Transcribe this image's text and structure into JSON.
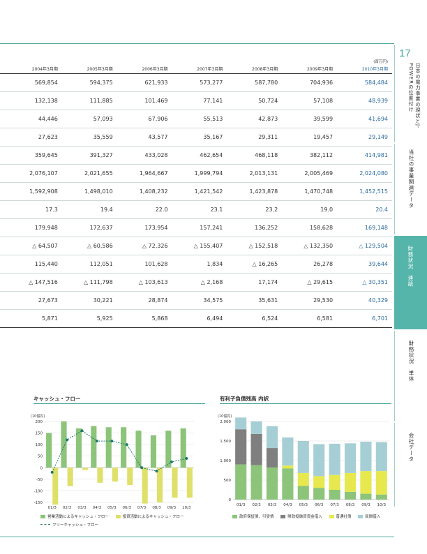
{
  "page": {
    "number": "17",
    "unit": "(百万円)"
  },
  "table": {
    "headers": [
      "2004年3月期",
      "2005年3月期",
      "2006年3月期",
      "2007年3月期",
      "2008年3月期",
      "2009年3月期",
      "2010年3月期"
    ],
    "rows": [
      [
        "569,854",
        "594,375",
        "621,933",
        "573,277",
        "587,780",
        "704,936",
        "584,484"
      ],
      [
        "132,138",
        "111,885",
        "101,469",
        "77,141",
        "50,724",
        "57,108",
        "48,939"
      ],
      [
        "44,446",
        "57,093",
        "67,906",
        "55,513",
        "42,873",
        "39,599",
        "41,694"
      ],
      [
        "27,623",
        "35,559",
        "43,577",
        "35,167",
        "29,311",
        "19,457",
        "29,149"
      ],
      [
        "359,645",
        "391,327",
        "433,028",
        "462,654",
        "468,118",
        "382,112",
        "414,981"
      ],
      [
        "2,076,107",
        "2,021,655",
        "1,964,667",
        "1,999,794",
        "2,013,131",
        "2,005,469",
        "2,024,080"
      ],
      [
        "1,592,908",
        "1,498,010",
        "1,408,232",
        "1,421,542",
        "1,423,878",
        "1,470,748",
        "1,452,515"
      ],
      [
        "17.3",
        "19.4",
        "22.0",
        "23.1",
        "23.2",
        "19.0",
        "20.4"
      ],
      [
        "179,948",
        "172,637",
        "173,954",
        "157,241",
        "136,252",
        "158,628",
        "169,148"
      ],
      [
        "△ 64,507",
        "△ 60,586",
        "△ 72,326",
        "△ 155,407",
        "△ 152,518",
        "△ 132,350",
        "△ 129,504"
      ],
      [
        "115,440",
        "112,051",
        "101,628",
        "1,834",
        "△ 16,265",
        "26,278",
        "39,644"
      ],
      [
        "△ 147,516",
        "△ 111,798",
        "△ 103,613",
        "△ 2,168",
        "17,174",
        "△ 29,615",
        "△ 30,351"
      ],
      [
        "27,673",
        "30,221",
        "28,874",
        "34,575",
        "35,631",
        "29,530",
        "40,329"
      ],
      [
        "5,871",
        "5,925",
        "5,868",
        "6,494",
        "6,524",
        "6,581",
        "6,701"
      ]
    ]
  },
  "sidebar": {
    "tabs": [
      {
        "label": "日本の電力事業の現状とJ-POWERの位置付け"
      },
      {
        "label": "当社の事業関連データ"
      },
      {
        "label": "財務状況　連結"
      },
      {
        "label": "財務状況　単体"
      },
      {
        "label": "会社データ"
      }
    ]
  },
  "charts": {
    "cf": {
      "title": "キャッシュ・フロー",
      "unit": "(10億円)",
      "legend": [
        "営業活動によるキャッシュ・フロー",
        "投資活動によるキャッシュ・フロー",
        "フリーキャッシュ・フロー"
      ]
    },
    "debt": {
      "title": "有利子負債残高 内訳",
      "unit": "(10億円)",
      "legend": [
        "政府保証債、引受債",
        "財政投融資資金借入",
        "普通社債",
        "民間借入"
      ]
    }
  },
  "chart_data": [
    {
      "type": "bar",
      "title": "キャッシュ・フロー",
      "categories": [
        "01/3",
        "02/3",
        "03/3",
        "04/3",
        "05/3",
        "06/3",
        "07/3",
        "08/3",
        "09/3",
        "10/3"
      ],
      "ylim": [
        -150,
        200
      ],
      "yticks": [
        "200",
        "150",
        "100",
        "50",
        "0",
        "-50",
        "-100",
        "-150"
      ],
      "series": [
        {
          "name": "営業活動によるキャッシュ・フロー",
          "color": "#8cc47a",
          "values": [
            150,
            200,
            170,
            180,
            175,
            175,
            160,
            140,
            160,
            170
          ]
        },
        {
          "name": "投資活動によるキャッシュ・フロー",
          "color": "#dfe06a",
          "values": [
            -160,
            -80,
            -10,
            -65,
            -60,
            -75,
            -155,
            -150,
            -130,
            -130
          ]
        },
        {
          "name": "フリーキャッシュ・フロー",
          "color": "#1f7a6b",
          "values": [
            -20,
            120,
            160,
            115,
            115,
            100,
            0,
            -15,
            25,
            40
          ]
        }
      ]
    },
    {
      "type": "bar",
      "title": "有利子負債残高 内訳",
      "categories": [
        "01/3",
        "02/3",
        "03/3",
        "04/3",
        "05/3",
        "06/3",
        "07/3",
        "08/3",
        "09/3",
        "10/3"
      ],
      "ylim": [
        0,
        2000
      ],
      "yticks": [
        "2,000",
        "1,500",
        "1,000",
        "500",
        "0"
      ],
      "series": [
        {
          "name": "政府保証債、引受債",
          "color": "#8cc47a",
          "values": [
            900,
            880,
            820,
            800,
            350,
            300,
            250,
            200,
            150,
            130
          ]
        },
        {
          "name": "財政投融資資金借入",
          "color": "#7f7f7f",
          "values": [
            900,
            800,
            500,
            0,
            0,
            0,
            0,
            0,
            0,
            0
          ]
        },
        {
          "name": "普通社債",
          "color": "#e6e84e",
          "values": [
            0,
            0,
            0,
            70,
            330,
            300,
            380,
            480,
            580,
            600
          ]
        },
        {
          "name": "民間借入",
          "color": "#a6cfd5",
          "values": [
            300,
            320,
            560,
            720,
            820,
            820,
            800,
            760,
            750,
            740
          ]
        }
      ]
    }
  ]
}
